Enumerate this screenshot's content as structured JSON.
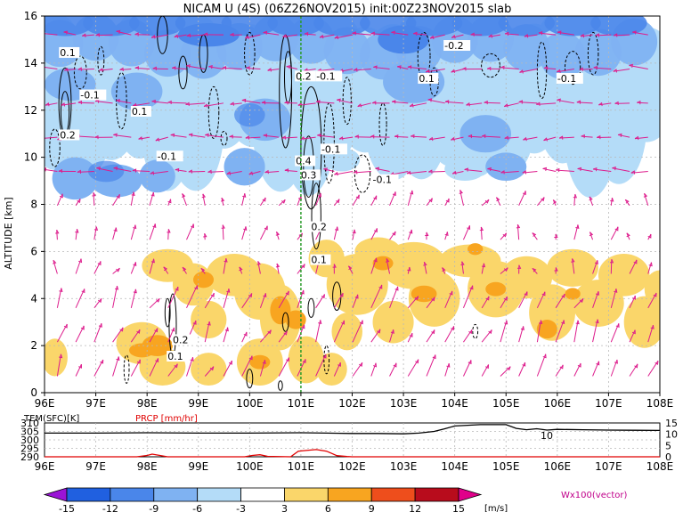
{
  "figure": {
    "title": "NICAM U (4S) (06Z26NOV2015) init:00Z23NOV2015 slab"
  },
  "chart_data": [
    {
      "type": "heatmap",
      "title": "NICAM U (4S) (06Z26NOV2015) init:00Z23NOV2015 slab",
      "xlabel": "",
      "ylabel": "ALTITUDE [km]",
      "x_ticks": [
        "96E",
        "97E",
        "98E",
        "99E",
        "100E",
        "101E",
        "102E",
        "103E",
        "104E",
        "105E",
        "106E",
        "107E",
        "108E"
      ],
      "y_ticks": [
        "0",
        "2",
        "4",
        "6",
        "8",
        "10",
        "12",
        "14",
        "16"
      ],
      "xlim": [
        96,
        108
      ],
      "ylim": [
        0,
        16
      ],
      "grid": true,
      "marker_line_lon": 101.0,
      "contour_labels": [
        {
          "text": "0.1",
          "lon": 96.3,
          "alt": 14.3
        },
        {
          "text": "-0.1",
          "lon": 96.7,
          "alt": 12.5
        },
        {
          "text": "0.2",
          "lon": 96.3,
          "alt": 10.8
        },
        {
          "text": "0.1",
          "lon": 97.7,
          "alt": 11.8
        },
        {
          "text": "-0.1",
          "lon": 98.2,
          "alt": 9.9
        },
        {
          "text": "0.2",
          "lon": 100.9,
          "alt": 13.3
        },
        {
          "text": "-0.1",
          "lon": 101.3,
          "alt": 13.3
        },
        {
          "text": "-0.1",
          "lon": 101.4,
          "alt": 10.2
        },
        {
          "text": "0.4",
          "lon": 100.9,
          "alt": 9.7
        },
        {
          "text": "0.3",
          "lon": 101.0,
          "alt": 9.1
        },
        {
          "text": "-0.1",
          "lon": 102.4,
          "alt": 8.9
        },
        {
          "text": "-0.2",
          "lon": 103.8,
          "alt": 14.6
        },
        {
          "text": "0.1",
          "lon": 103.3,
          "alt": 13.2
        },
        {
          "text": "-0.1",
          "lon": 106.0,
          "alt": 13.2
        },
        {
          "text": "0.2",
          "lon": 101.2,
          "alt": 6.9
        },
        {
          "text": "0.1",
          "lon": 101.2,
          "alt": 5.5
        },
        {
          "text": "0.2",
          "lon": 98.5,
          "alt": 2.1
        },
        {
          "text": "0.1",
          "lon": 98.4,
          "alt": 1.4
        }
      ],
      "vector_label": "Wx100(vector)"
    },
    {
      "type": "line",
      "title": "",
      "left_axis_label": "TEM(SFC)[K]",
      "right_axis_label": "PRCP [mm/hr]",
      "x_ticks": [
        "96E",
        "97E",
        "98E",
        "99E",
        "100E",
        "101E",
        "102E",
        "103E",
        "104E",
        "105E",
        "106E",
        "107E",
        "108E"
      ],
      "left_ticks": [
        "290",
        "295",
        "300",
        "305",
        "310"
      ],
      "right_ticks": [
        "0",
        "5",
        "10",
        "15"
      ],
      "left_ylim": [
        290,
        310
      ],
      "right_ylim": [
        0,
        15
      ],
      "series": [
        {
          "name": "TEM(SFC)[K]",
          "color": "#000000",
          "x": [
            96,
            97,
            98,
            99,
            100,
            101,
            101.5,
            102,
            102.5,
            103,
            103.3,
            103.6,
            103.8,
            104.0,
            104.5,
            105,
            105.2,
            105.4,
            105.6,
            105.8,
            106,
            106.5,
            107,
            107.5,
            108
          ],
          "y": [
            304.0,
            304.0,
            304.2,
            304.0,
            304.0,
            304.2,
            304.0,
            303.8,
            303.8,
            303.6,
            304.0,
            305.0,
            306.5,
            308.2,
            309.0,
            309.0,
            306.8,
            306.0,
            306.6,
            305.8,
            306.2,
            306.0,
            305.8,
            305.7,
            305.6
          ]
        },
        {
          "name": "PRCP [mm/hr]",
          "color": "#e00000",
          "x": [
            96,
            97.8,
            98.0,
            98.1,
            98.25,
            98.4,
            99.9,
            100.05,
            100.2,
            100.35,
            100.8,
            100.95,
            101.1,
            101.3,
            101.5,
            101.6,
            101.7,
            101.9,
            102.0,
            108
          ],
          "y": [
            0,
            0,
            0.6,
            1.2,
            0.6,
            0,
            0,
            0.6,
            0.9,
            0.2,
            0,
            2.5,
            2.8,
            3.2,
            2.5,
            1.5,
            0.5,
            0.1,
            0,
            0
          ]
        }
      ],
      "annotations": [
        "10"
      ]
    },
    {
      "type": "colorbar",
      "tick_labels": [
        "-15",
        "-12",
        "-9",
        "-6",
        "-3",
        "3",
        "6",
        "9",
        "12",
        "15"
      ],
      "unit": "[m/s]",
      "colors": [
        "#9a14d6",
        "#2060e0",
        "#4a86ea",
        "#7fb2f2",
        "#b4dcf8",
        "#ffffff",
        "#fad66a",
        "#f8a520",
        "#ee4e1c",
        "#b80c1c",
        "#e0008a"
      ]
    }
  ],
  "colors": {
    "vector": "#dd1c8c",
    "marker_line": "#2a9b2a",
    "contour": "#000000",
    "grid": "#b8b8b8",
    "neg_light": "#b4dcf8",
    "neg_mid": "#7fb2f2",
    "neg_dark": "#4a86ea",
    "pos_light": "#fad66a",
    "pos_mid": "#f8a520"
  }
}
